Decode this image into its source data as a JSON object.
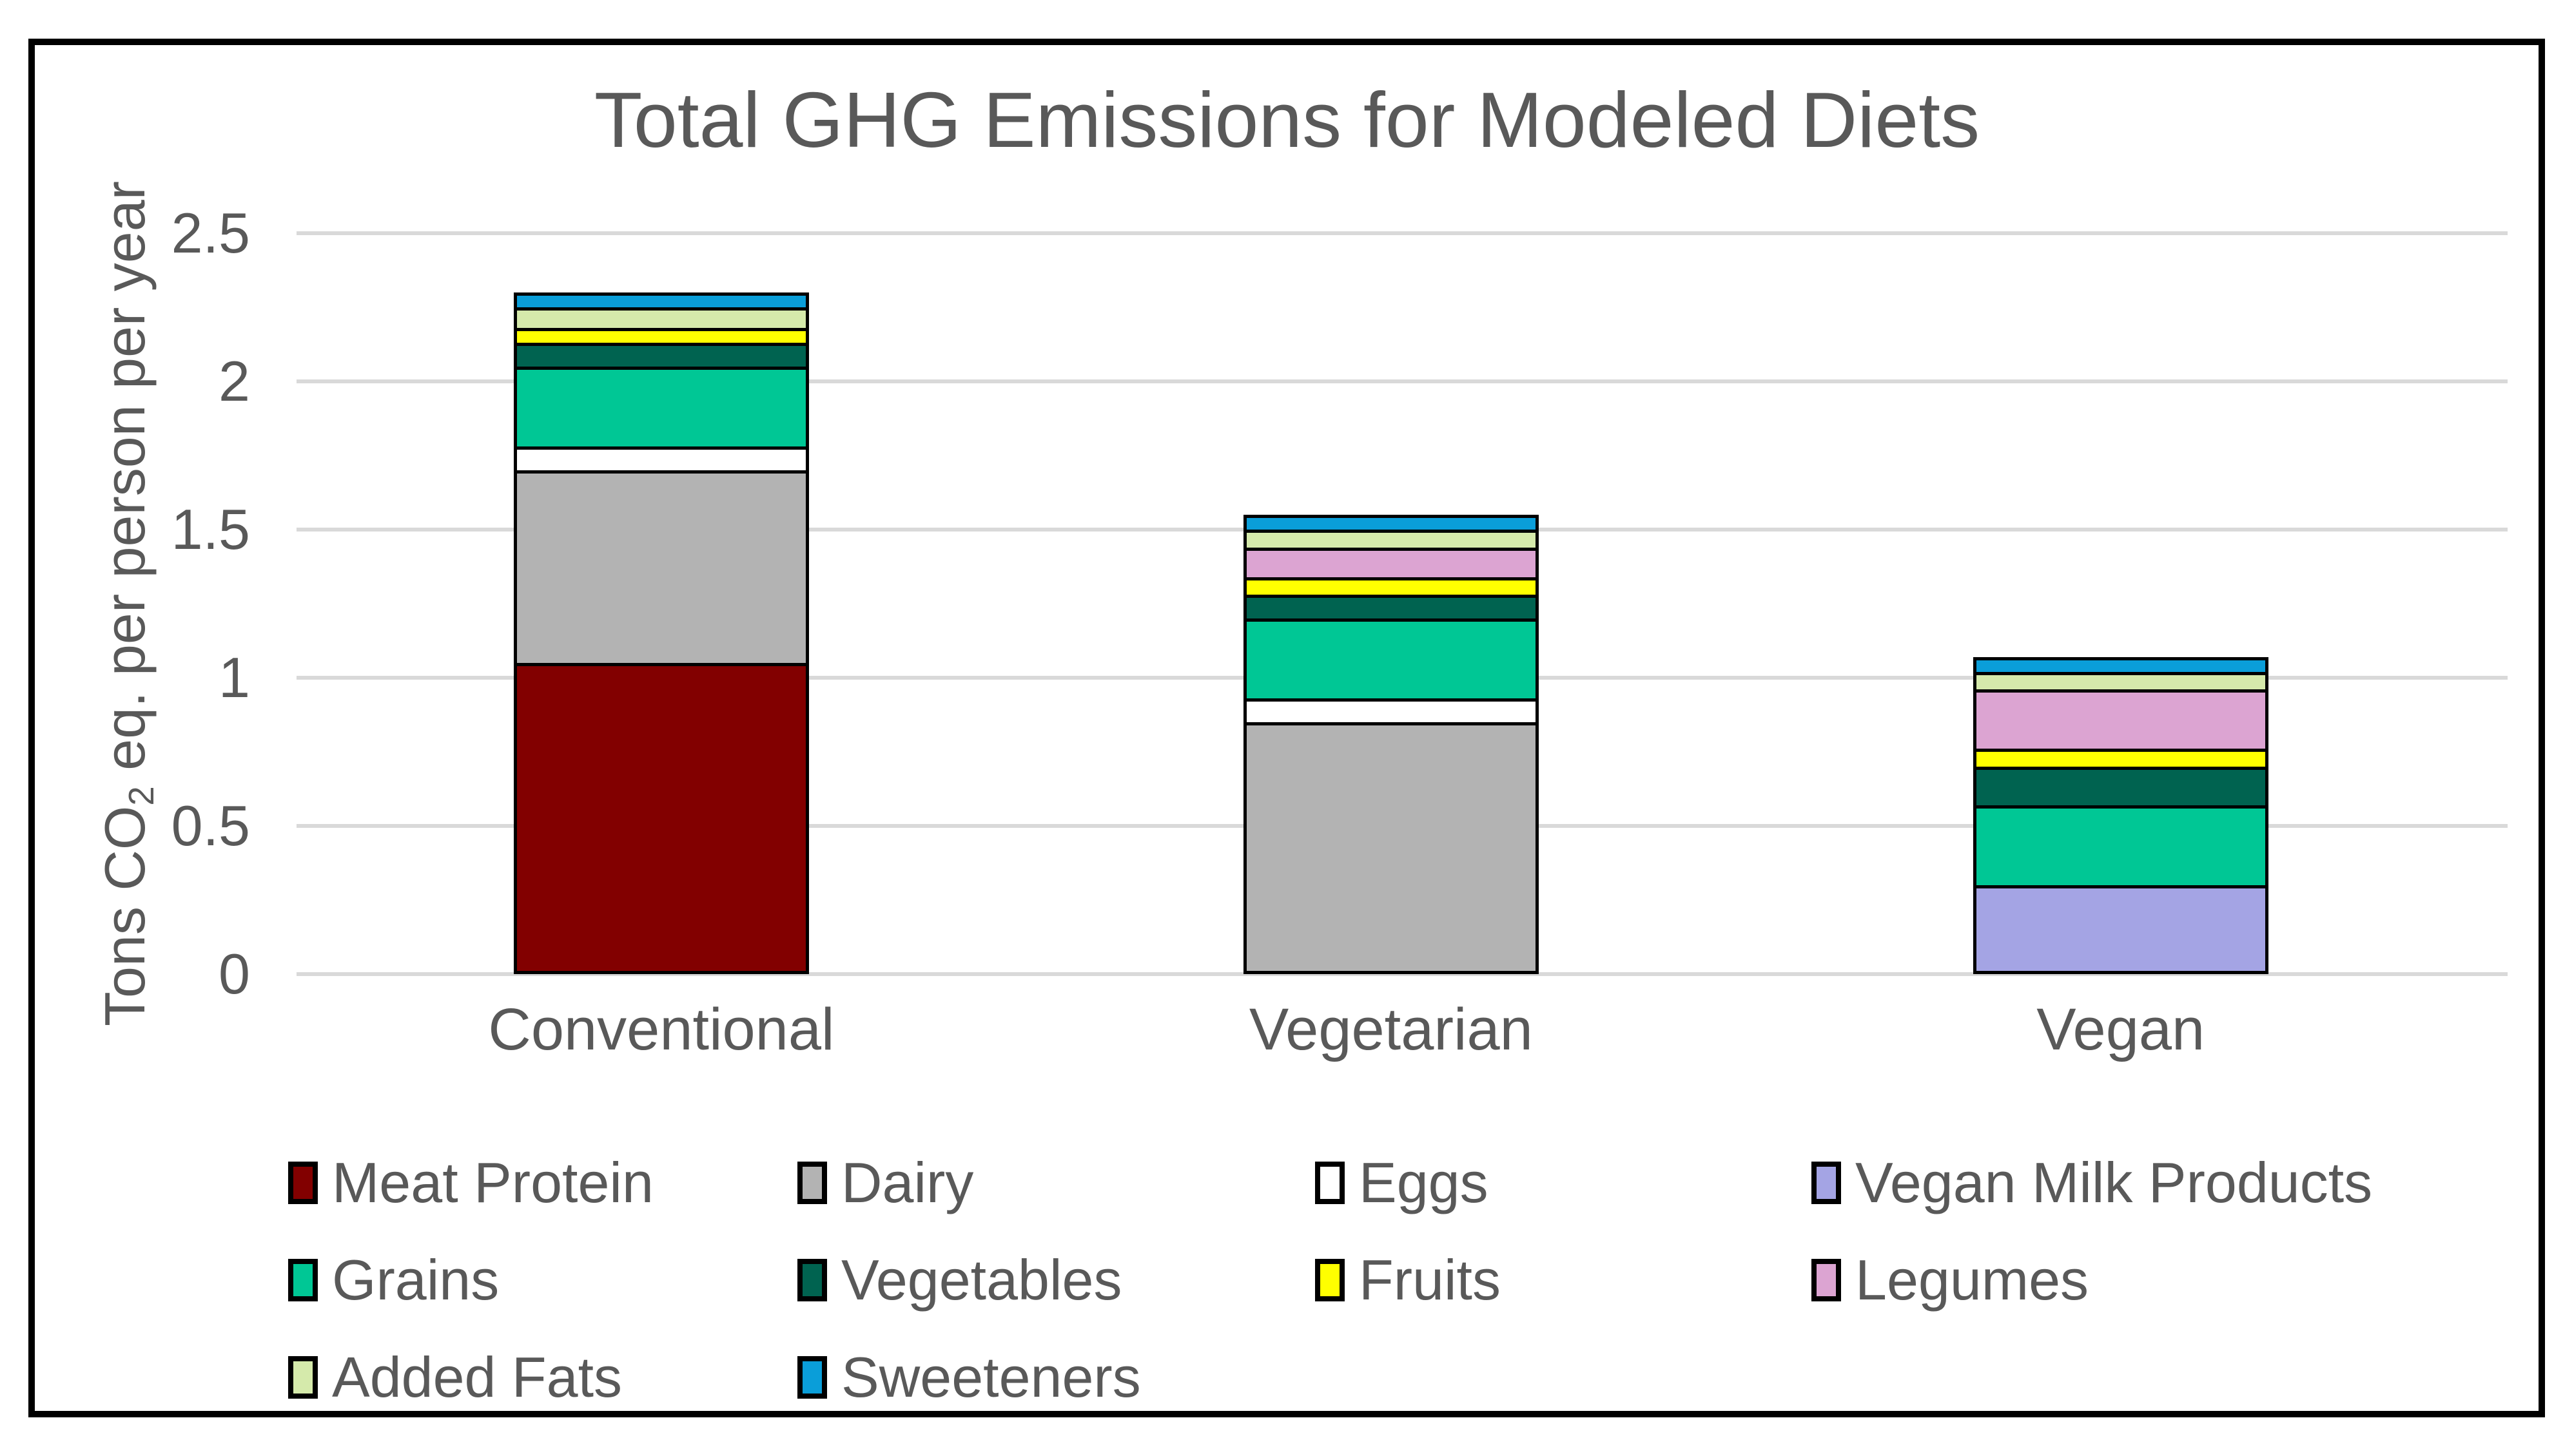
{
  "chart_data": {
    "type": "bar",
    "stacked": true,
    "title": "Total GHG Emissions for Modeled Diets",
    "ylabel_parts": {
      "prefix": "Tons CO",
      "sub": "2",
      "suffix": " eq. per person per year"
    },
    "ylabel": "Tons CO2 eq. per person per year",
    "xlabel": "",
    "ylim": [
      0,
      2.5
    ],
    "grid": true,
    "legend_position": "bottom",
    "categories": [
      "Conventional",
      "Vegetarian",
      "Vegan"
    ],
    "yticks": [
      {
        "label": "2.5",
        "value": 2.5
      },
      {
        "label": "2",
        "value": 2.0
      },
      {
        "label": "1.5",
        "value": 1.5
      },
      {
        "label": "1",
        "value": 1.0
      },
      {
        "label": "0.5",
        "value": 0.5
      },
      {
        "label": "0",
        "value": 0.0
      }
    ],
    "series": [
      {
        "name": "Meat Protein",
        "color": "#820000",
        "values": [
          1.05,
          0,
          0
        ]
      },
      {
        "name": "Dairy",
        "color": "#B3B3B3",
        "values": [
          0.65,
          0.85,
          0
        ]
      },
      {
        "name": "Eggs",
        "color": "#FFFFFF",
        "values": [
          0.08,
          0.08,
          0
        ]
      },
      {
        "name": "Vegan Milk Products",
        "color": "#A4A4E4",
        "values": [
          0,
          0,
          0.3
        ]
      },
      {
        "name": "Grains",
        "color": "#00C795",
        "values": [
          0.27,
          0.27,
          0.27
        ]
      },
      {
        "name": "Vegetables",
        "color": "#006350",
        "values": [
          0.08,
          0.08,
          0.13
        ]
      },
      {
        "name": "Fruits",
        "color": "#FFFF00",
        "values": [
          0.05,
          0.06,
          0.06
        ]
      },
      {
        "name": "Legumes",
        "color": "#DCA4D2",
        "values": [
          0,
          0.1,
          0.2
        ]
      },
      {
        "name": "Added Fats",
        "color": "#D5EAAB",
        "values": [
          0.07,
          0.06,
          0.06
        ]
      },
      {
        "name": "Sweeteners",
        "color": "#0A9ED9",
        "values": [
          0.05,
          0.05,
          0.05
        ]
      }
    ],
    "totals": [
      2.3,
      1.55,
      1.07
    ],
    "colors": {
      "text": "#595959",
      "gridline": "#D9D9D9",
      "frame_border": "#000000",
      "background": "#FFFFFF"
    }
  }
}
